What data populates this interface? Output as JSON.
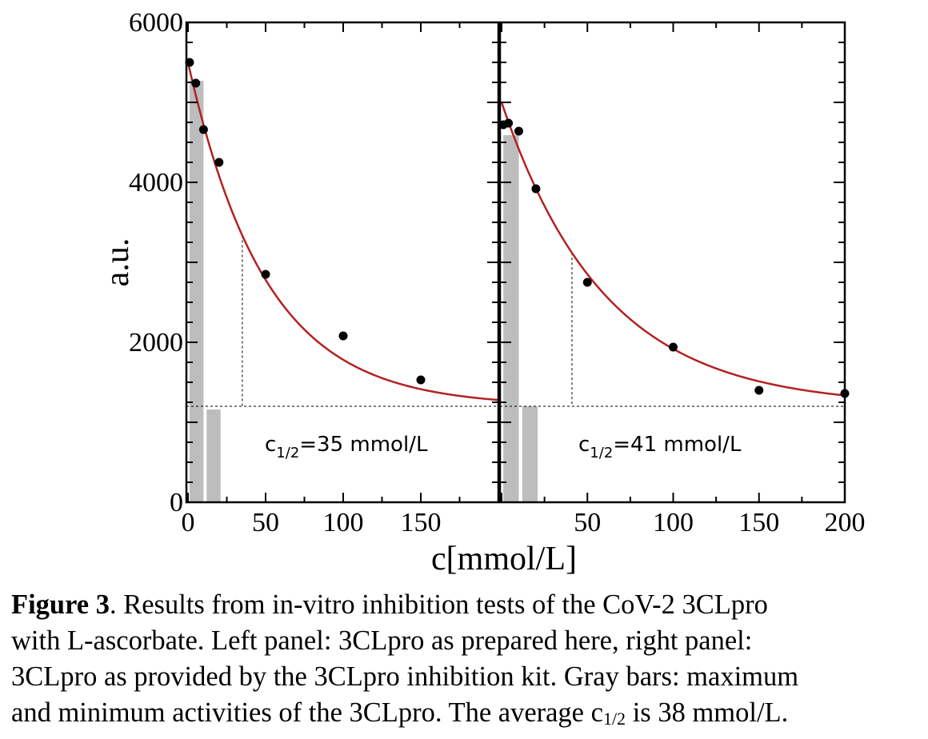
{
  "chart_data": [
    {
      "type": "scatter",
      "panel": "left",
      "xlim": [
        0,
        200
      ],
      "ylim": [
        0,
        6000
      ],
      "yticks": [
        "0",
        "2000",
        "4000",
        "6000"
      ],
      "xticks": [
        "0",
        "50",
        "100",
        "150"
      ],
      "ylabel": "a.u.",
      "points": [
        {
          "x": 1,
          "y": 5500
        },
        {
          "x": 5,
          "y": 5240
        },
        {
          "x": 10,
          "y": 4660
        },
        {
          "x": 20,
          "y": 4250
        },
        {
          "x": 50,
          "y": 2850
        },
        {
          "x": 100,
          "y": 2080
        },
        {
          "x": 150,
          "y": 1530
        }
      ],
      "fit": {
        "baseline": 1200,
        "amplitude": 4300,
        "decay": 50,
        "color": "#b22222"
      },
      "bars": [
        {
          "x0": 1,
          "x1": 10,
          "value": 5270,
          "label": "maximum activity"
        },
        {
          "x0": 12,
          "x1": 21,
          "value": 1160,
          "label": "minimum activity"
        }
      ],
      "reference_level": 1200,
      "c_half": 35,
      "annotation": {
        "base": "c",
        "sub": "1/2",
        "text": "=35 mmol/L"
      }
    },
    {
      "type": "scatter",
      "panel": "right",
      "xlim": [
        0,
        200
      ],
      "ylim": [
        0,
        6000
      ],
      "xticks": [
        "50",
        "100",
        "150",
        "200"
      ],
      "points": [
        {
          "x": 1,
          "y": 4720
        },
        {
          "x": 4,
          "y": 4740
        },
        {
          "x": 10,
          "y": 4640
        },
        {
          "x": 20,
          "y": 3920
        },
        {
          "x": 50,
          "y": 2750
        },
        {
          "x": 100,
          "y": 1940
        },
        {
          "x": 150,
          "y": 1400
        },
        {
          "x": 200,
          "y": 1360
        }
      ],
      "fit": {
        "baseline": 1200,
        "amplitude": 3800,
        "decay": 60,
        "color": "#b22222"
      },
      "bars": [
        {
          "x0": 1,
          "x1": 10,
          "value": 4590,
          "label": "maximum activity"
        },
        {
          "x0": 12,
          "x1": 21,
          "value": 1200,
          "label": "minimum activity"
        }
      ],
      "reference_level": 1200,
      "c_half": 41,
      "annotation": {
        "base": "c",
        "sub": "1/2",
        "text": "=41 mmol/L"
      }
    }
  ],
  "shared": {
    "xlabel": "c[mmol/L]"
  },
  "caption": {
    "label": "Figure 3",
    "line1": ". Results from in-vitro inhibition tests of the CoV-2 3CLpro",
    "line2": "with L-ascorbate. Left panel: 3CLpro as prepared here, right panel:",
    "line3": "3CLpro as provided by the 3CLpro inhibition kit. Gray bars: maximum",
    "line4_pre": "and minimum activities of the 3CLpro. The average c",
    "line4_sub": "1/2",
    "line4_post": " is 38 mmol/L."
  },
  "colors": {
    "fit": "#b22222",
    "bars": "#bdbdbd",
    "points": "#000000",
    "axes": "#000000"
  }
}
